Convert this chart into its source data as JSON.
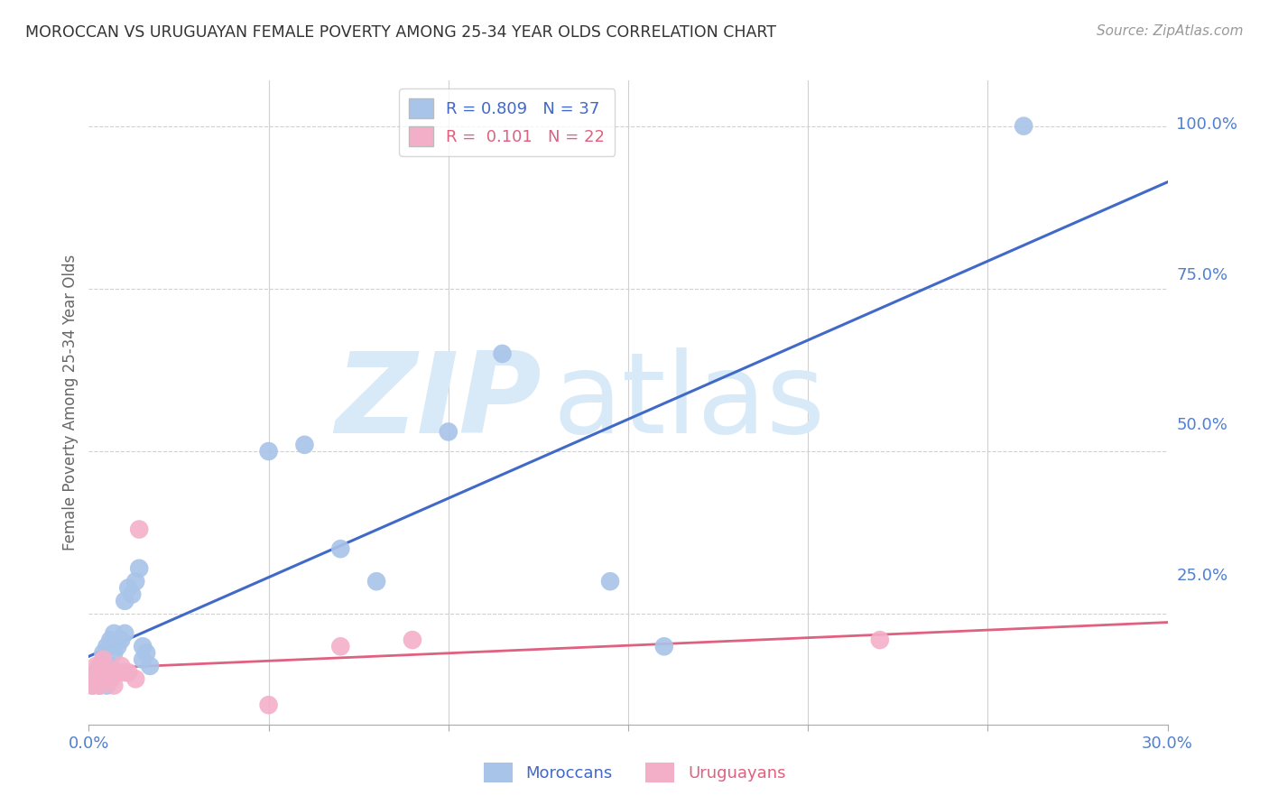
{
  "title": "MOROCCAN VS URUGUAYAN FEMALE POVERTY AMONG 25-34 YEAR OLDS CORRELATION CHART",
  "source": "Source: ZipAtlas.com",
  "ylabel": "Female Poverty Among 25-34 Year Olds",
  "moroccan_color": "#a8c4e8",
  "uruguayan_color": "#f4afc8",
  "moroccan_line_color": "#4169c8",
  "uruguayan_line_color": "#e06080",
  "background_color": "#ffffff",
  "watermark_text": "ZIP",
  "watermark_text2": "atlas",
  "watermark_color": "#d8eaf8",
  "grid_color": "#d0d0d0",
  "title_color": "#333333",
  "axis_label_color": "#666666",
  "right_axis_color": "#5080d0",
  "legend_moroccan_text": "R = 0.809   N = 37",
  "legend_uruguayan_text": "R =  0.101   N = 22",
  "moroccan_x": [
    0.001,
    0.002,
    0.002,
    0.003,
    0.003,
    0.003,
    0.004,
    0.004,
    0.004,
    0.005,
    0.005,
    0.005,
    0.006,
    0.006,
    0.007,
    0.007,
    0.008,
    0.009,
    0.01,
    0.01,
    0.011,
    0.012,
    0.013,
    0.014,
    0.015,
    0.015,
    0.016,
    0.017,
    0.05,
    0.06,
    0.07,
    0.08,
    0.1,
    0.115,
    0.145,
    0.16,
    0.26
  ],
  "moroccan_y": [
    0.14,
    0.15,
    0.16,
    0.14,
    0.16,
    0.17,
    0.15,
    0.17,
    0.19,
    0.14,
    0.16,
    0.2,
    0.17,
    0.21,
    0.19,
    0.22,
    0.2,
    0.21,
    0.27,
    0.22,
    0.29,
    0.28,
    0.3,
    0.32,
    0.18,
    0.2,
    0.19,
    0.17,
    0.5,
    0.51,
    0.35,
    0.3,
    0.53,
    0.65,
    0.3,
    0.2,
    1.0
  ],
  "uruguayan_x": [
    0.001,
    0.002,
    0.002,
    0.003,
    0.003,
    0.004,
    0.004,
    0.005,
    0.006,
    0.006,
    0.007,
    0.007,
    0.008,
    0.009,
    0.01,
    0.011,
    0.013,
    0.014,
    0.05,
    0.07,
    0.09,
    0.22
  ],
  "uruguayan_y": [
    0.14,
    0.15,
    0.17,
    0.14,
    0.16,
    0.17,
    0.18,
    0.15,
    0.15,
    0.16,
    0.16,
    0.14,
    0.16,
    0.17,
    0.16,
    0.16,
    0.15,
    0.38,
    0.11,
    0.2,
    0.21,
    0.21
  ],
  "xlim": [
    0.0,
    0.3
  ],
  "ylim": [
    0.08,
    1.07
  ],
  "y_ticks": [
    0.0,
    0.25,
    0.5,
    0.75,
    1.0
  ],
  "y_tick_labels": [
    "",
    "25.0%",
    "50.0%",
    "75.0%",
    "100.0%"
  ],
  "x_ticks": [
    0.0,
    0.05,
    0.1,
    0.15,
    0.2,
    0.25,
    0.3
  ],
  "x_tick_labels": [
    "0.0%",
    "",
    "",
    "",
    "",
    "",
    "30.0%"
  ]
}
